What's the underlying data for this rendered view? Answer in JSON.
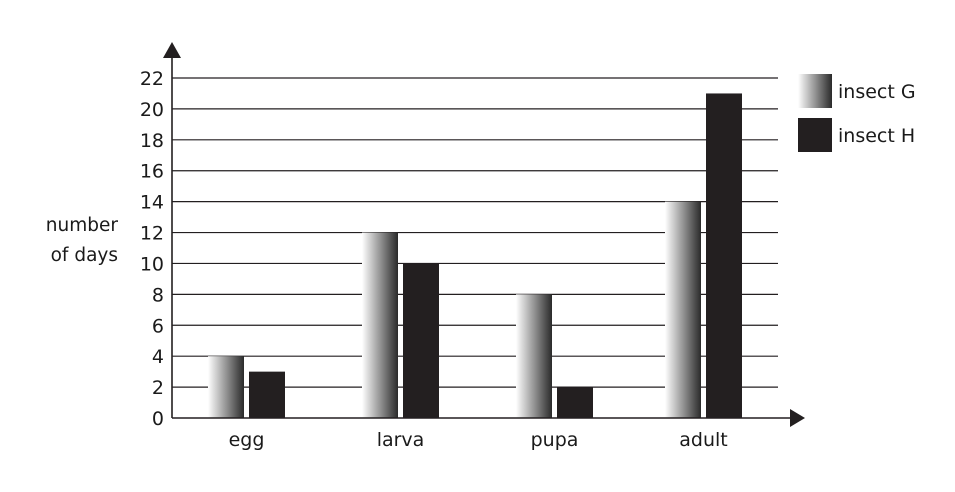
{
  "chart_data": {
    "type": "bar",
    "categories": [
      "egg",
      "larva",
      "pupa",
      "adult"
    ],
    "series": [
      {
        "name": "insect G",
        "values": [
          4,
          12,
          8,
          14
        ],
        "style": "gradient",
        "gradient_colors": [
          "#ffffff",
          "#2a2a2a"
        ]
      },
      {
        "name": "insect H",
        "values": [
          3,
          10,
          2,
          21
        ],
        "style": "solid",
        "color": "#231f20"
      }
    ],
    "ylabel_lines": [
      "number",
      "of days"
    ],
    "xlabel": "",
    "yticks": [
      0,
      2,
      4,
      6,
      8,
      10,
      12,
      14,
      16,
      18,
      20,
      22
    ],
    "ylim": [
      0,
      22
    ],
    "grid": true,
    "legend_position": "top-right"
  }
}
